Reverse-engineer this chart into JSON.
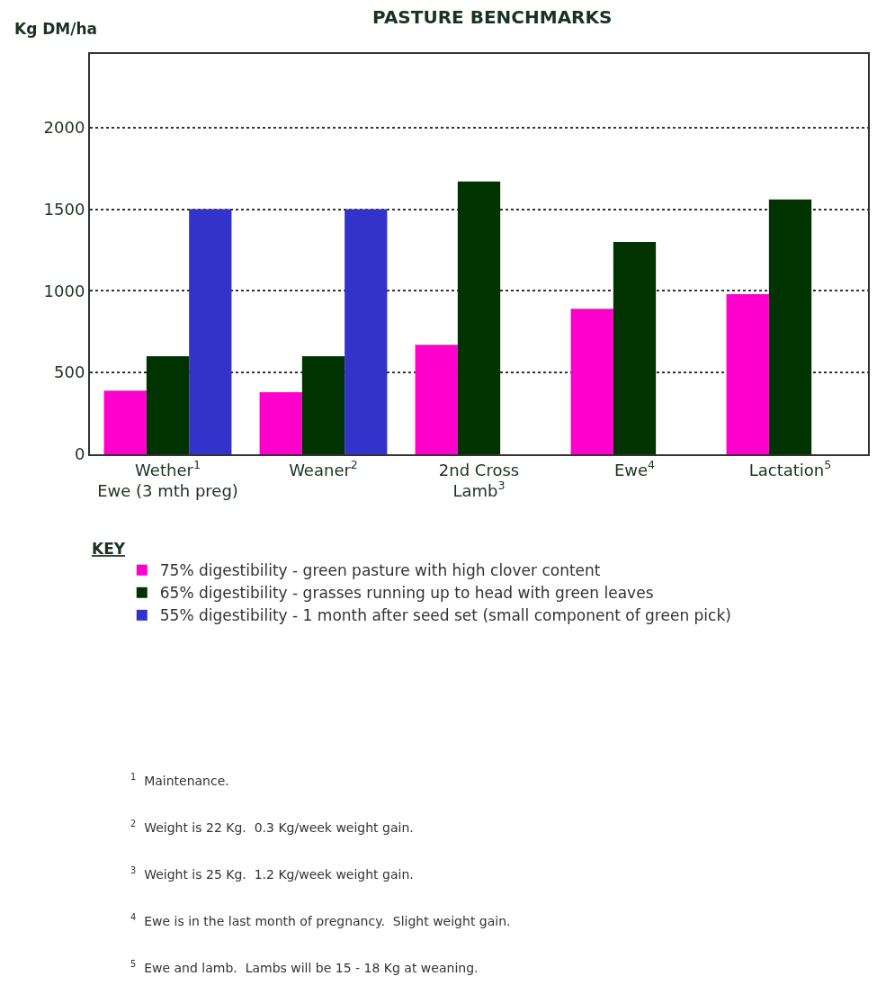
{
  "chart_data": {
    "type": "bar",
    "title": "PASTURE BENCHMARKS",
    "ylabel": "Kg DM/ha",
    "categories": [
      "Wether$^{1}$\nEwe (3 mth preg)",
      "Weaner$^{2}$",
      "2nd Cross\nLamb$^{3}$",
      "Ewe$^{4}$",
      "Lactation$^{5}$"
    ],
    "series": [
      {
        "name": "75% digestibility - green pasture with high clover content",
        "color": "#ff00cc",
        "values": [
          390,
          380,
          670,
          890,
          980
        ]
      },
      {
        "name": "65% digestibility - grasses running up to head with green leaves",
        "color": "#003300",
        "values": [
          600,
          600,
          1670,
          1300,
          1560
        ]
      },
      {
        "name": "55% digestibility - 1 month after seed set (small component of green pick)",
        "color": "#3333cc",
        "values": [
          1500,
          1500,
          null,
          null,
          null
        ]
      }
    ],
    "ylim": [
      0,
      2450
    ],
    "yticks": [
      0,
      500,
      1000,
      1500,
      2000
    ],
    "grid": "y",
    "legend": "bottom",
    "legend_title": "KEY",
    "annotations": [
      "$^{1}$  Maintenance.",
      "$^{2}$  Weight is 22 Kg.  0.3 Kg/week weight gain.",
      "$^{3}$  Weight is 25 Kg.  1.2 Kg/week weight gain.",
      "$^{4}$  Ewe is in the last month of pregnancy.  Slight weight gain.",
      "$^{5}$  Ewe and lamb.  Lambs will be 15 - 18 Kg at weaning."
    ]
  }
}
